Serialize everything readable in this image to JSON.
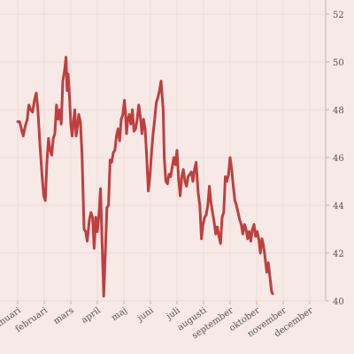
{
  "chart_data": {
    "type": "line",
    "title": "",
    "xlabel": "",
    "ylabel": "",
    "grid": true,
    "ylim": [
      40,
      52
    ],
    "yticks": [
      40,
      42,
      44,
      46,
      48,
      50,
      52
    ],
    "y_axis_side": "right",
    "xticks": [
      "januari",
      "februari",
      "mars",
      "april",
      "maj",
      "juni",
      "juli",
      "augusti",
      "september",
      "oktober",
      "november",
      "december"
    ],
    "colors": {
      "line": "#bf3f3f",
      "background": "#f7e9e6",
      "grid": "#efdcd6"
    },
    "series": [
      {
        "points": [
          [
            0.0,
            47.5
          ],
          [
            0.07,
            47.5
          ],
          [
            0.14,
            47.2
          ],
          [
            0.21,
            46.9
          ],
          [
            0.28,
            47.3
          ],
          [
            0.36,
            47.6
          ],
          [
            0.42,
            48.2
          ],
          [
            0.49,
            48.0
          ],
          [
            0.56,
            47.9
          ],
          [
            0.63,
            48.4
          ],
          [
            0.7,
            48.7
          ],
          [
            0.76,
            48.0
          ],
          [
            0.84,
            46.5
          ],
          [
            0.92,
            45.2
          ],
          [
            0.98,
            44.4
          ],
          [
            1.04,
            44.2
          ],
          [
            1.1,
            45.8
          ],
          [
            1.16,
            46.8
          ],
          [
            1.22,
            46.3
          ],
          [
            1.28,
            46.1
          ],
          [
            1.34,
            46.8
          ],
          [
            1.4,
            47.0
          ],
          [
            1.46,
            48.2
          ],
          [
            1.52,
            47.6
          ],
          [
            1.58,
            48.0
          ],
          [
            1.64,
            47.4
          ],
          [
            1.7,
            49.2
          ],
          [
            1.76,
            49.6
          ],
          [
            1.82,
            50.2
          ],
          [
            1.86,
            48.8
          ],
          [
            1.9,
            49.5
          ],
          [
            1.95,
            48.6
          ],
          [
            2.0,
            47.4
          ],
          [
            2.05,
            46.9
          ],
          [
            2.1,
            47.5
          ],
          [
            2.15,
            48.0
          ],
          [
            2.2,
            46.9
          ],
          [
            2.25,
            47.3
          ],
          [
            2.3,
            47.8
          ],
          [
            2.36,
            47.5
          ],
          [
            2.42,
            46.2
          ],
          [
            2.5,
            43.0
          ],
          [
            2.56,
            42.9
          ],
          [
            2.62,
            42.5
          ],
          [
            2.7,
            43.4
          ],
          [
            2.76,
            43.7
          ],
          [
            2.82,
            43.5
          ],
          [
            2.88,
            42.2
          ],
          [
            2.94,
            43.5
          ],
          [
            3.0,
            42.9
          ],
          [
            3.06,
            43.6
          ],
          [
            3.12,
            44.7
          ],
          [
            3.18,
            42.4
          ],
          [
            3.24,
            40.2
          ],
          [
            3.3,
            42.0
          ],
          [
            3.36,
            43.9
          ],
          [
            3.42,
            44.0
          ],
          [
            3.48,
            45.9
          ],
          [
            3.54,
            45.8
          ],
          [
            3.6,
            46.2
          ],
          [
            3.66,
            46.3
          ],
          [
            3.72,
            46.9
          ],
          [
            3.78,
            47.2
          ],
          [
            3.84,
            46.7
          ],
          [
            3.9,
            47.6
          ],
          [
            3.96,
            47.8
          ],
          [
            4.02,
            48.4
          ],
          [
            4.06,
            47.9
          ],
          [
            4.1,
            47.0
          ],
          [
            4.14,
            47.5
          ],
          [
            4.2,
            47.8
          ],
          [
            4.26,
            47.4
          ],
          [
            4.32,
            48.0
          ],
          [
            4.38,
            47.1
          ],
          [
            4.44,
            47.2
          ],
          [
            4.5,
            47.6
          ],
          [
            4.56,
            48.2
          ],
          [
            4.62,
            47.7
          ],
          [
            4.68,
            47.0
          ],
          [
            4.74,
            47.6
          ],
          [
            4.8,
            47.2
          ],
          [
            4.86,
            46.0
          ],
          [
            4.92,
            44.6
          ],
          [
            4.98,
            45.2
          ],
          [
            5.04,
            46.2
          ],
          [
            5.1,
            47.0
          ],
          [
            5.16,
            47.6
          ],
          [
            5.22,
            48.3
          ],
          [
            5.28,
            48.5
          ],
          [
            5.34,
            48.8
          ],
          [
            5.4,
            49.2
          ],
          [
            5.44,
            48.6
          ],
          [
            5.48,
            48.0
          ],
          [
            5.52,
            46.0
          ],
          [
            5.58,
            45.0
          ],
          [
            5.64,
            44.9
          ],
          [
            5.7,
            45.3
          ],
          [
            5.76,
            45.2
          ],
          [
            5.82,
            45.6
          ],
          [
            5.88,
            46.0
          ],
          [
            5.94,
            45.7
          ],
          [
            6.0,
            46.3
          ],
          [
            6.06,
            45.1
          ],
          [
            6.12,
            44.4
          ],
          [
            6.18,
            45.2
          ],
          [
            6.24,
            45.5
          ],
          [
            6.3,
            45.0
          ],
          [
            6.36,
            44.8
          ],
          [
            6.42,
            45.2
          ],
          [
            6.48,
            45.3
          ],
          [
            6.54,
            45.4
          ],
          [
            6.6,
            45.0
          ],
          [
            6.66,
            45.5
          ],
          [
            6.72,
            45.8
          ],
          [
            6.8,
            44.5
          ],
          [
            6.86,
            44.0
          ],
          [
            6.92,
            42.6
          ],
          [
            6.98,
            43.2
          ],
          [
            7.04,
            43.5
          ],
          [
            7.1,
            43.6
          ],
          [
            7.16,
            44.0
          ],
          [
            7.22,
            44.8
          ],
          [
            7.28,
            44.1
          ],
          [
            7.34,
            43.7
          ],
          [
            7.4,
            43.3
          ],
          [
            7.46,
            42.8
          ],
          [
            7.52,
            43.1
          ],
          [
            7.58,
            42.7
          ],
          [
            7.64,
            42.4
          ],
          [
            7.7,
            43.5
          ],
          [
            7.76,
            43.7
          ],
          [
            7.82,
            45.2
          ],
          [
            7.88,
            45.0
          ],
          [
            7.94,
            45.3
          ],
          [
            8.0,
            46.0
          ],
          [
            8.06,
            45.5
          ],
          [
            8.12,
            44.8
          ],
          [
            8.18,
            44.2
          ],
          [
            8.24,
            44.0
          ],
          [
            8.3,
            43.7
          ],
          [
            8.36,
            43.4
          ],
          [
            8.42,
            43.2
          ],
          [
            8.48,
            42.8
          ],
          [
            8.54,
            43.2
          ],
          [
            8.6,
            43.0
          ],
          [
            8.66,
            42.6
          ],
          [
            8.72,
            42.9
          ],
          [
            8.78,
            42.5
          ],
          [
            8.84,
            43.0
          ],
          [
            8.9,
            43.2
          ],
          [
            8.96,
            42.7
          ],
          [
            9.02,
            42.9
          ],
          [
            9.08,
            42.6
          ],
          [
            9.14,
            42.0
          ],
          [
            9.2,
            42.6
          ],
          [
            9.26,
            42.3
          ],
          [
            9.32,
            41.8
          ],
          [
            9.38,
            41.2
          ],
          [
            9.44,
            41.6
          ],
          [
            9.5,
            41.0
          ],
          [
            9.56,
            40.4
          ],
          [
            9.6,
            40.3
          ]
        ]
      }
    ]
  }
}
